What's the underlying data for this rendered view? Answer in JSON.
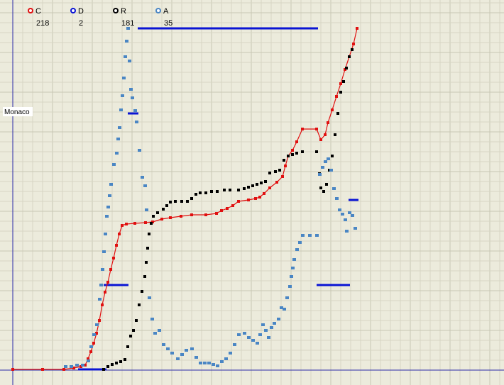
{
  "chart_data": {
    "type": "line",
    "title": "",
    "xlabel": "",
    "ylabel": "",
    "grid": true,
    "legend_position": "top-left",
    "annotation": "Monaco",
    "colors": {
      "background": "#ecebdc",
      "grid_minor": "#d7d6c4",
      "grid_major": "#c8c7b4",
      "axis": "#2a2aa8"
    },
    "legend": [
      {
        "key": "C",
        "count": "218",
        "color": "#e01010"
      },
      {
        "key": "D",
        "count": "2",
        "color": "#0a14d4"
      },
      {
        "key": "R",
        "count": "181",
        "color": "#000000"
      },
      {
        "key": "A",
        "count": "35",
        "color": "#4a86c4"
      }
    ],
    "series": [
      {
        "name": "C",
        "color": "#e01010",
        "style": "line-markers",
        "points": [
          [
            18,
            521
          ],
          [
            60,
            521
          ],
          [
            90,
            521
          ],
          [
            104,
            519
          ],
          [
            114,
            517
          ],
          [
            120,
            515
          ],
          [
            124,
            506
          ],
          [
            128,
            496
          ],
          [
            132,
            484
          ],
          [
            136,
            470
          ],
          [
            140,
            452
          ],
          [
            144,
            430
          ],
          [
            148,
            412
          ],
          [
            152,
            398
          ],
          [
            156,
            380
          ],
          [
            160,
            364
          ],
          [
            164,
            346
          ],
          [
            168,
            330
          ],
          [
            172,
            318
          ],
          [
            178,
            316
          ],
          [
            190,
            315
          ],
          [
            205,
            314
          ],
          [
            215,
            313
          ],
          [
            228,
            309
          ],
          [
            240,
            307
          ],
          [
            255,
            305
          ],
          [
            270,
            303
          ],
          [
            290,
            303
          ],
          [
            305,
            301
          ],
          [
            312,
            297
          ],
          [
            320,
            294
          ],
          [
            328,
            290
          ],
          [
            336,
            284
          ],
          [
            350,
            282
          ],
          [
            360,
            280
          ],
          [
            366,
            278
          ],
          [
            372,
            273
          ],
          [
            380,
            265
          ],
          [
            390,
            257
          ],
          [
            398,
            249
          ],
          [
            402,
            234
          ],
          [
            406,
            220
          ],
          [
            412,
            212
          ],
          [
            418,
            200
          ],
          [
            426,
            182
          ],
          [
            446,
            182
          ],
          [
            452,
            197
          ],
          [
            458,
            190
          ],
          [
            462,
            173
          ],
          [
            468,
            155
          ],
          [
            474,
            136
          ],
          [
            480,
            118
          ],
          [
            486,
            98
          ],
          [
            492,
            80
          ],
          [
            498,
            62
          ],
          [
            503,
            40
          ]
        ]
      },
      {
        "name": "R",
        "color": "#000000",
        "style": "markers",
        "points": [
          [
            146,
            521
          ],
          [
            152,
            517
          ],
          [
            158,
            514
          ],
          [
            164,
            512
          ],
          [
            170,
            510
          ],
          [
            176,
            507
          ],
          [
            180,
            489
          ],
          [
            184,
            474
          ],
          [
            188,
            466
          ],
          [
            192,
            452
          ],
          [
            196,
            430
          ],
          [
            200,
            411
          ],
          [
            204,
            390
          ],
          [
            206,
            370
          ],
          [
            208,
            350
          ],
          [
            210,
            330
          ],
          [
            213,
            315
          ],
          [
            216,
            305
          ],
          [
            222,
            300
          ],
          [
            230,
            295
          ],
          [
            235,
            290
          ],
          [
            240,
            285
          ],
          [
            247,
            284
          ],
          [
            256,
            284
          ],
          [
            264,
            284
          ],
          [
            270,
            280
          ],
          [
            276,
            274
          ],
          [
            282,
            272
          ],
          [
            290,
            272
          ],
          [
            298,
            270
          ],
          [
            306,
            270
          ],
          [
            316,
            268
          ],
          [
            324,
            268
          ],
          [
            336,
            268
          ],
          [
            344,
            266
          ],
          [
            350,
            264
          ],
          [
            356,
            262
          ],
          [
            362,
            260
          ],
          [
            368,
            258
          ],
          [
            374,
            256
          ],
          [
            380,
            244
          ],
          [
            388,
            242
          ],
          [
            394,
            240
          ],
          [
            400,
            226
          ],
          [
            406,
            220
          ],
          [
            412,
            218
          ],
          [
            418,
            216
          ],
          [
            426,
            214
          ],
          [
            446,
            214
          ],
          [
            450,
            245
          ],
          [
            452,
            265
          ],
          [
            456,
            270
          ],
          [
            460,
            260
          ],
          [
            464,
            240
          ],
          [
            468,
            220
          ],
          [
            472,
            190
          ],
          [
            476,
            160
          ],
          [
            480,
            130
          ],
          [
            484,
            115
          ],
          [
            488,
            96
          ],
          [
            492,
            80
          ],
          [
            496,
            70
          ]
        ]
      },
      {
        "name": "A",
        "color": "#4a86c4",
        "style": "markers",
        "points": [
          [
            92,
            517
          ],
          [
            100,
            517
          ],
          [
            108,
            515
          ],
          [
            116,
            515
          ],
          [
            124,
            509
          ],
          [
            128,
            489
          ],
          [
            132,
            472
          ],
          [
            136,
            458
          ],
          [
            140,
            422
          ],
          [
            142,
            402
          ],
          [
            144,
            380
          ],
          [
            146,
            355
          ],
          [
            148,
            330
          ],
          [
            150,
            305
          ],
          [
            152,
            292
          ],
          [
            154,
            276
          ],
          [
            156,
            260
          ],
          [
            160,
            232
          ],
          [
            164,
            216
          ],
          [
            166,
            196
          ],
          [
            168,
            180
          ],
          [
            170,
            155
          ],
          [
            172,
            135
          ],
          [
            174,
            110
          ],
          [
            176,
            80
          ],
          [
            178,
            58
          ],
          [
            180,
            40
          ],
          [
            182,
            86
          ],
          [
            184,
            126
          ],
          [
            186,
            138
          ],
          [
            190,
            156
          ],
          [
            192,
            172
          ],
          [
            196,
            212
          ],
          [
            200,
            250
          ],
          [
            204,
            262
          ],
          [
            206,
            296
          ],
          [
            210,
            420
          ],
          [
            214,
            450
          ],
          [
            218,
            470
          ],
          [
            224,
            466
          ],
          [
            230,
            486
          ],
          [
            236,
            492
          ],
          [
            242,
            498
          ],
          [
            250,
            506
          ],
          [
            256,
            500
          ],
          [
            262,
            494
          ],
          [
            270,
            492
          ],
          [
            276,
            504
          ],
          [
            282,
            512
          ],
          [
            288,
            512
          ],
          [
            294,
            512
          ],
          [
            300,
            514
          ],
          [
            306,
            516
          ],
          [
            312,
            510
          ],
          [
            318,
            506
          ],
          [
            324,
            498
          ],
          [
            330,
            486
          ],
          [
            336,
            472
          ],
          [
            344,
            470
          ],
          [
            350,
            476
          ],
          [
            356,
            480
          ],
          [
            362,
            484
          ],
          [
            366,
            472
          ],
          [
            370,
            458
          ],
          [
            374,
            466
          ],
          [
            378,
            476
          ],
          [
            382,
            462
          ],
          [
            386,
            456
          ],
          [
            392,
            450
          ],
          [
            396,
            434
          ],
          [
            400,
            436
          ],
          [
            404,
            420
          ],
          [
            408,
            404
          ],
          [
            410,
            390
          ],
          [
            412,
            378
          ],
          [
            414,
            366
          ],
          [
            418,
            352
          ],
          [
            422,
            342
          ],
          [
            426,
            332
          ],
          [
            436,
            332
          ],
          [
            446,
            332
          ],
          [
            450,
            246
          ],
          [
            454,
            236
          ],
          [
            458,
            228
          ],
          [
            462,
            224
          ],
          [
            466,
            240
          ],
          [
            470,
            266
          ],
          [
            474,
            280
          ],
          [
            478,
            296
          ],
          [
            482,
            302
          ],
          [
            486,
            310
          ],
          [
            488,
            326
          ],
          [
            492,
            300
          ],
          [
            496,
            304
          ],
          [
            500,
            322
          ]
        ]
      }
    ],
    "d_segments": [
      [
        194,
        40,
        448,
        40
      ],
      [
        180,
        160,
        195,
        160
      ],
      [
        146,
        402,
        181,
        402
      ],
      [
        446,
        402,
        493,
        402
      ],
      [
        491,
        282,
        505,
        282
      ],
      [
        110,
        521,
        150,
        521
      ]
    ]
  }
}
